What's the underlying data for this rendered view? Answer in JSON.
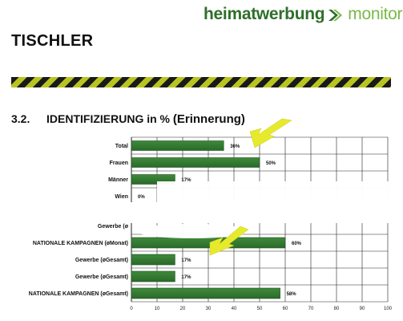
{
  "brand": {
    "part1": "heimatwerbung",
    "part2": "monitor",
    "accent": "#2f6f2a",
    "accent_light": "#7cb84a"
  },
  "page_title": "TISCHLER",
  "section": {
    "number": "3.2.",
    "title": "IDENTIFIZIERUNG in %",
    "subtitle": "(Erinnerung)"
  },
  "colors": {
    "bar": "#3f8a3b",
    "bar_dark": "#2a6a2a",
    "arrow": "#e7ea2c",
    "stripe_dark": "#1a1a1a",
    "stripe_light": "#b8c520"
  },
  "chart_data": [
    {
      "type": "bar",
      "orientation": "horizontal",
      "categories": [
        "Total",
        "Frauen",
        "Männer",
        "Wien"
      ],
      "values": [
        36,
        50,
        17,
        0
      ],
      "value_labels": [
        "36%",
        "50%",
        "17%",
        "0%"
      ],
      "xlim": [
        0,
        100
      ],
      "grid": true
    },
    {
      "type": "bar",
      "orientation": "horizontal",
      "categories": [
        "Gewerbe (ø",
        "NATIONALE KAMPAGNEN (øMonat)",
        "Gewerbe (øGesamt)",
        "Gewerbe (øGesamt)",
        "NATIONALE KAMPAGNEN (øGesamt)"
      ],
      "values": [
        null,
        60,
        17,
        17,
        58
      ],
      "value_labels": [
        "",
        "60%",
        "17%",
        "17%",
        "58%"
      ],
      "xlim": [
        0,
        100
      ],
      "xticks": [
        0,
        10,
        20,
        30,
        40,
        50,
        60,
        70,
        80,
        90,
        100
      ],
      "grid": true
    }
  ]
}
